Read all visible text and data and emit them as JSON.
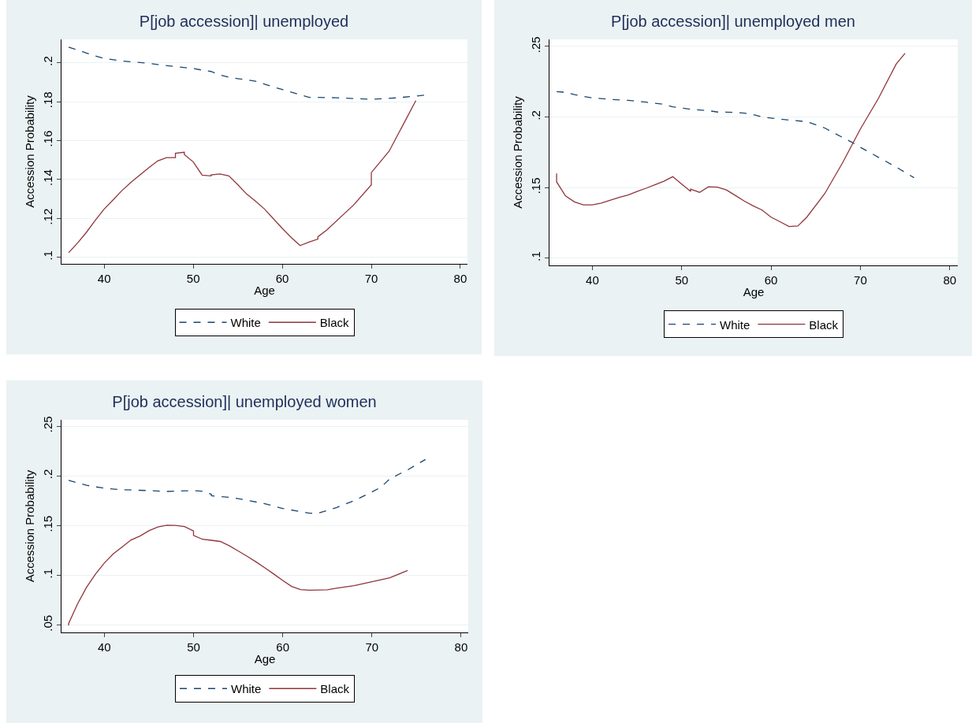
{
  "chart_data": [
    {
      "type": "line",
      "title": "P[job accession]| unemployed",
      "xlabel": "Age",
      "ylabel": "Accession Probability",
      "xlim": [
        35.2,
        80.8
      ],
      "xticks": [
        40,
        50,
        60,
        70,
        80
      ],
      "ylim": [
        0.0966,
        0.212
      ],
      "yticks": [
        {
          "value": 0.1,
          "label": ".1"
        },
        {
          "value": 0.12,
          "label": ".12"
        },
        {
          "value": 0.14,
          "label": ".14"
        },
        {
          "value": 0.16,
          "label": ".16"
        },
        {
          "value": 0.18,
          "label": ".18"
        },
        {
          "value": 0.2,
          "label": ".2"
        }
      ],
      "grid": "y",
      "legend": "bottom",
      "series": [
        {
          "name": "White",
          "color": "#1a476f",
          "line_style": "dashed",
          "x": [
            36,
            37,
            38,
            39,
            40,
            42,
            45,
            47,
            50,
            51,
            52,
            53,
            54,
            55,
            57,
            58,
            60,
            63,
            64,
            66,
            70,
            73,
            76
          ],
          "values": [
            0.208,
            0.2065,
            0.205,
            0.2035,
            0.2022,
            0.2009,
            0.1997,
            0.1985,
            0.197,
            0.1962,
            0.1955,
            0.1937,
            0.1925,
            0.1918,
            0.1905,
            0.189,
            0.1862,
            0.1822,
            0.1822,
            0.182,
            0.1812,
            0.182,
            0.1833
          ]
        },
        {
          "name": "Black",
          "color": "#90353b",
          "line_style": "solid",
          "x": [
            36,
            37,
            38,
            39,
            40,
            41,
            42,
            43,
            44,
            45,
            46,
            47,
            48,
            48,
            49,
            49,
            50,
            51,
            52,
            52,
            53,
            54,
            55,
            56,
            57,
            58,
            59,
            60,
            61,
            62,
            63,
            64,
            64,
            65,
            68,
            70,
            70,
            72,
            75
          ],
          "values": [
            0.1023,
            0.1073,
            0.1128,
            0.119,
            0.1248,
            0.1295,
            0.1343,
            0.1385,
            0.1423,
            0.146,
            0.1495,
            0.1512,
            0.1512,
            0.1535,
            0.154,
            0.1528,
            0.149,
            0.1422,
            0.1418,
            0.1423,
            0.1428,
            0.1418,
            0.1373,
            0.1325,
            0.1288,
            0.1248,
            0.1198,
            0.1148,
            0.1102,
            0.106,
            0.1078,
            0.1093,
            0.1105,
            0.114,
            0.1268,
            0.1372,
            0.1435,
            0.1545,
            0.1805
          ]
        }
      ]
    },
    {
      "type": "line",
      "title": "P[job accession]| unemployed men",
      "xlabel": "Age",
      "ylabel": "Accession Probability",
      "xlim": [
        35.2,
        80.9
      ],
      "xticks": [
        40,
        50,
        60,
        70,
        80
      ],
      "ylim": [
        0.0948,
        0.255
      ],
      "yticks": [
        {
          "value": 0.1,
          "label": ".1"
        },
        {
          "value": 0.15,
          "label": ".15"
        },
        {
          "value": 0.2,
          "label": ".2"
        },
        {
          "value": 0.25,
          "label": ".25"
        }
      ],
      "grid": "y",
      "legend": "bottom",
      "series": [
        {
          "name": "White",
          "color": "#1a476f",
          "line_style": "dashed",
          "x": [
            36,
            37,
            38,
            40,
            42,
            44,
            46,
            48,
            49,
            51,
            53,
            54,
            56,
            57,
            58,
            59,
            61,
            62,
            64,
            66,
            68,
            69,
            70,
            72,
            74,
            76
          ],
          "values": [
            0.218,
            0.2175,
            0.2158,
            0.2135,
            0.2125,
            0.2118,
            0.2105,
            0.209,
            0.2072,
            0.2055,
            0.2045,
            0.2035,
            0.2033,
            0.2027,
            0.2017,
            0.2,
            0.1985,
            0.1978,
            0.1967,
            0.1922,
            0.1855,
            0.1822,
            0.1785,
            0.1715,
            0.1645,
            0.157
          ]
        },
        {
          "name": "Black",
          "color": "#90353b",
          "line_style": "solid",
          "x": [
            36,
            36,
            37,
            38,
            39,
            40,
            41,
            43,
            44,
            45,
            46,
            47,
            48,
            49,
            50,
            51,
            51,
            52,
            53,
            54,
            55,
            56,
            57,
            58,
            59,
            60,
            61,
            62,
            63,
            64,
            66,
            68,
            70,
            72,
            74,
            75
          ],
          "values": [
            0.16,
            0.154,
            0.144,
            0.1398,
            0.1377,
            0.1377,
            0.139,
            0.143,
            0.1447,
            0.1472,
            0.1495,
            0.152,
            0.1545,
            0.1577,
            0.1525,
            0.1473,
            0.1488,
            0.1466,
            0.1505,
            0.1503,
            0.1483,
            0.1444,
            0.1404,
            0.137,
            0.134,
            0.129,
            0.1258,
            0.1224,
            0.1228,
            0.129,
            0.1456,
            0.1675,
            0.1915,
            0.213,
            0.2375,
            0.2452
          ]
        }
      ]
    },
    {
      "type": "line",
      "title": "P[job accession]| unemployed women",
      "xlabel": "Age",
      "ylabel": "Accession Probability",
      "xlim": [
        35.2,
        80.8
      ],
      "xticks": [
        40,
        50,
        60,
        70,
        80
      ],
      "ylim": [
        0.0425,
        0.2564
      ],
      "yticks": [
        {
          "value": 0.05,
          "label": ".05"
        },
        {
          "value": 0.1,
          "label": ".1"
        },
        {
          "value": 0.15,
          "label": ".15"
        },
        {
          "value": 0.2,
          "label": ".2"
        },
        {
          "value": 0.25,
          "label": ".25"
        }
      ],
      "grid": "y",
      "legend": "bottom",
      "series": [
        {
          "name": "White",
          "color": "#1a476f",
          "line_style": "dashed",
          "x": [
            36,
            38,
            40,
            42,
            45,
            47,
            50,
            51,
            52,
            52,
            54,
            56,
            58,
            60,
            62,
            63,
            64,
            66,
            68,
            70,
            71,
            72,
            74,
            76
          ],
          "values": [
            0.1955,
            0.1905,
            0.1875,
            0.186,
            0.1852,
            0.1843,
            0.1852,
            0.1845,
            0.1815,
            0.18,
            0.1785,
            0.1755,
            0.172,
            0.1672,
            0.164,
            0.1625,
            0.1625,
            0.168,
            0.175,
            0.1838,
            0.1885,
            0.197,
            0.206,
            0.2165
          ]
        },
        {
          "name": "Black",
          "color": "#90353b",
          "line_style": "solid",
          "x": [
            36,
            36,
            37,
            38,
            39,
            40,
            41,
            42,
            43,
            44,
            45,
            46,
            47,
            48,
            49,
            50,
            50,
            51,
            52,
            53,
            54,
            55,
            56,
            57,
            58,
            59,
            60,
            61,
            62,
            63,
            65,
            66,
            68,
            70,
            72,
            74
          ],
          "values": [
            0.0495,
            0.0515,
            0.0712,
            0.0877,
            0.101,
            0.1123,
            0.1215,
            0.1285,
            0.1355,
            0.1395,
            0.1448,
            0.1485,
            0.1503,
            0.1502,
            0.149,
            0.1445,
            0.14,
            0.1362,
            0.1352,
            0.134,
            0.1297,
            0.1245,
            0.1192,
            0.1135,
            0.1075,
            0.1012,
            0.0948,
            0.0888,
            0.0856,
            0.085,
            0.0853,
            0.087,
            0.0895,
            0.0935,
            0.0975,
            0.1048
          ]
        }
      ]
    }
  ]
}
